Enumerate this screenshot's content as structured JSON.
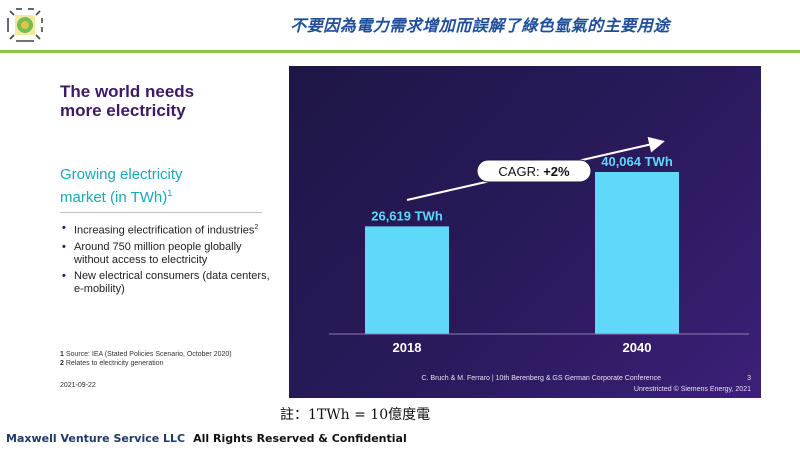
{
  "header": {
    "title": "不要因為電力需求增加而誤解了綠色氫氣的主要用途",
    "accent_color": "#8dc63f",
    "title_color": "#1f4e9c"
  },
  "logo": {
    "icon": "bagua-logo-icon"
  },
  "left_panel": {
    "heading_line1": "The world needs",
    "heading_line2": "more electricity",
    "sub_line1": "Growing electricity",
    "sub_line2": "market (in TWh)",
    "sub_sup": "1",
    "bullets": [
      {
        "text": "Increasing electrification of industries",
        "sup": "2"
      },
      {
        "text": "Around 750 million people globally without access to electricity",
        "sup": ""
      },
      {
        "text": "New electrical consumers (data centers, e-mobility)",
        "sup": ""
      }
    ],
    "notes": [
      {
        "num": "1",
        "text": "Source: IEA (Stated Policies Scenario, October 2020)"
      },
      {
        "num": "2",
        "text": "Relates to electricity generation"
      }
    ],
    "date": "2021-09-22"
  },
  "chart_data": {
    "type": "bar",
    "categories": [
      "2018",
      "2040"
    ],
    "values": [
      26619,
      40064
    ],
    "value_labels": [
      "26,619 TWh",
      "40,064 TWh"
    ],
    "unit": "TWh",
    "ylim": [
      0,
      40064
    ],
    "annotation": {
      "prefix": "CAGR: ",
      "value": "+2%"
    },
    "bar_color": "#5fd8fa",
    "credit_line1": "C. Bruch & M. Ferraro | 10th Berenberg & GS German Corporate Conference",
    "page_number": "3",
    "credit_line2": "Unrestricted © Siemens Energy, 2021"
  },
  "footnote": "註：1TWh = 10億度電",
  "footer": {
    "company": "Maxwell Venture Service LLC",
    "rights": "All Rights Reserved & Confidential"
  }
}
